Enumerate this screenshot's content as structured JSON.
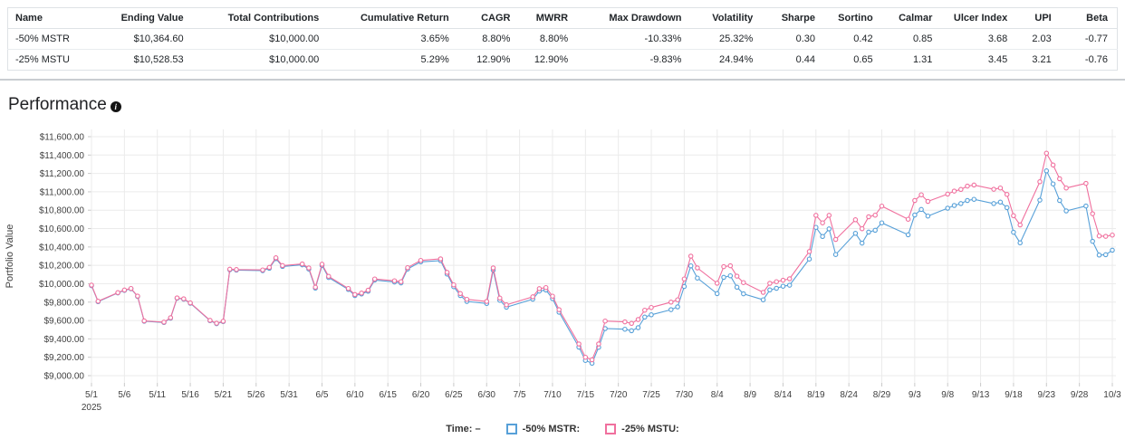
{
  "performance": {
    "title": "Performance",
    "info_icon": "i"
  },
  "table": {
    "columns": [
      "Name",
      "Ending Value",
      "Total Contributions",
      "Cumulative Return",
      "CAGR",
      "MWRR",
      "Max Drawdown",
      "Volatility",
      "Sharpe",
      "Sortino",
      "Calmar",
      "Ulcer Index",
      "UPI",
      "Beta"
    ],
    "rows": [
      [
        "-50% MSTR",
        "$10,364.60",
        "$10,000.00",
        "3.65%",
        "8.80%",
        "8.80%",
        "-10.33%",
        "25.32%",
        "0.30",
        "0.42",
        "0.85",
        "3.68",
        "2.03",
        "-0.77"
      ],
      [
        "-25% MSTU",
        "$10,528.53",
        "$10,000.00",
        "5.29%",
        "12.90%",
        "12.90%",
        "-9.83%",
        "24.94%",
        "0.44",
        "0.65",
        "1.31",
        "3.45",
        "3.21",
        "-0.76"
      ]
    ]
  },
  "legend": {
    "time_label": "Time:",
    "time_value": "–",
    "items": [
      {
        "label": "-50% MSTR:",
        "color": "#57A0D8"
      },
      {
        "label": "-25% MSTU:",
        "color": "#F0709E"
      }
    ]
  },
  "chart_data": {
    "type": "line",
    "title": "Performance",
    "xlabel": "",
    "ylabel": "Portfolio Value",
    "ylim": [
      9000,
      11600
    ],
    "ytick_step": 200,
    "y_tick_labels": [
      "$9,000.00",
      "$9,200.00",
      "$9,400.00",
      "$9,600.00",
      "$9,800.00",
      "$10,000.00",
      "$10,200.00",
      "$10,400.00",
      "$10,600.00",
      "$10,800.00",
      "$11,000.00",
      "$11,200.00",
      "$11,400.00",
      "$11,600.00"
    ],
    "x_tick_labels": [
      "5/1",
      "5/6",
      "5/11",
      "5/16",
      "5/21",
      "5/26",
      "5/31",
      "6/5",
      "6/10",
      "6/15",
      "6/20",
      "6/25",
      "6/30",
      "7/5",
      "7/10",
      "7/15",
      "7/20",
      "7/25",
      "7/30",
      "8/4",
      "8/9",
      "8/14",
      "8/19",
      "8/24",
      "8/29",
      "9/3",
      "9/8",
      "9/13",
      "9/18",
      "9/23",
      "9/28",
      "10/3"
    ],
    "x_first_tick_sublabel": "2025",
    "grid": true,
    "legend_position": "bottom",
    "series": [
      {
        "name": "-50% MSTR",
        "color": "#57A0D8"
      },
      {
        "name": "-25% MSTU",
        "color": "#F0709E"
      }
    ],
    "points": [
      [
        "5/1",
        0,
        9980,
        9985
      ],
      [
        "5/2",
        1,
        9805,
        9810
      ],
      [
        "5/5",
        4,
        9900,
        9903
      ],
      [
        "5/6",
        5,
        9928,
        9932
      ],
      [
        "5/7",
        6,
        9945,
        9948
      ],
      [
        "5/8",
        7,
        9862,
        9866
      ],
      [
        "5/9",
        8,
        9592,
        9596
      ],
      [
        "5/12",
        11,
        9578,
        9582
      ],
      [
        "5/13",
        12,
        9625,
        9630
      ],
      [
        "5/14",
        13,
        9842,
        9846
      ],
      [
        "5/15",
        14,
        9832,
        9836
      ],
      [
        "5/16",
        15,
        9788,
        9792
      ],
      [
        "5/19",
        18,
        9598,
        9602
      ],
      [
        "5/20",
        19,
        9565,
        9570
      ],
      [
        "5/21",
        20,
        9588,
        9592
      ],
      [
        "5/22",
        21,
        10152,
        10158
      ],
      [
        "5/23",
        22,
        10148,
        10154
      ],
      [
        "5/27",
        26,
        10142,
        10150
      ],
      [
        "5/28",
        27,
        10168,
        10178
      ],
      [
        "5/29",
        28,
        10272,
        10282
      ],
      [
        "5/30",
        29,
        10188,
        10198
      ],
      [
        "6/2",
        32,
        10205,
        10215
      ],
      [
        "6/3",
        33,
        10160,
        10172
      ],
      [
        "6/4",
        34,
        9952,
        9962
      ],
      [
        "6/5",
        35,
        10200,
        10212
      ],
      [
        "6/6",
        36,
        10068,
        10080
      ],
      [
        "6/9",
        39,
        9938,
        9948
      ],
      [
        "6/10",
        40,
        9872,
        9882
      ],
      [
        "6/11",
        41,
        9888,
        9898
      ],
      [
        "6/12",
        42,
        9918,
        9930
      ],
      [
        "6/13",
        43,
        10040,
        10052
      ],
      [
        "6/16",
        46,
        10018,
        10032
      ],
      [
        "6/17",
        47,
        10008,
        10022
      ],
      [
        "6/18",
        48,
        10160,
        10175
      ],
      [
        "6/20",
        50,
        10238,
        10254
      ],
      [
        "6/23",
        53,
        10252,
        10270
      ],
      [
        "6/24",
        54,
        10105,
        10124
      ],
      [
        "6/25",
        55,
        9968,
        9988
      ],
      [
        "6/26",
        56,
        9872,
        9893
      ],
      [
        "6/27",
        57,
        9808,
        9830
      ],
      [
        "6/30",
        60,
        9785,
        9808
      ],
      [
        "7/1",
        61,
        10148,
        10172
      ],
      [
        "7/2",
        62,
        9820,
        9844
      ],
      [
        "7/3",
        63,
        9745,
        9770
      ],
      [
        "7/7",
        67,
        9832,
        9858
      ],
      [
        "7/8",
        68,
        9920,
        9946
      ],
      [
        "7/9",
        69,
        9932,
        9958
      ],
      [
        "7/10",
        70,
        9838,
        9865
      ],
      [
        "7/11",
        71,
        9690,
        9718
      ],
      [
        "7/14",
        74,
        9310,
        9345
      ],
      [
        "7/15",
        75,
        9165,
        9200
      ],
      [
        "7/16",
        76,
        9135,
        9172
      ],
      [
        "7/17",
        77,
        9308,
        9345
      ],
      [
        "7/18",
        78,
        9512,
        9594
      ],
      [
        "7/21",
        81,
        9505,
        9585
      ],
      [
        "7/22",
        82,
        9488,
        9568
      ],
      [
        "7/23",
        83,
        9522,
        9611
      ],
      [
        "7/24",
        84,
        9637,
        9712
      ],
      [
        "7/25",
        85,
        9662,
        9742
      ],
      [
        "7/28",
        88,
        9718,
        9800
      ],
      [
        "7/29",
        89,
        9748,
        9825
      ],
      [
        "7/30",
        90,
        9970,
        10052
      ],
      [
        "7/31",
        91,
        10195,
        10300
      ],
      [
        "8/1",
        92,
        10062,
        10172
      ],
      [
        "8/4",
        95,
        9892,
        10006
      ],
      [
        "8/5",
        96,
        10070,
        10186
      ],
      [
        "8/6",
        97,
        10086,
        10196
      ],
      [
        "8/7",
        98,
        9962,
        10082
      ],
      [
        "8/8",
        99,
        9890,
        10012
      ],
      [
        "8/11",
        102,
        9825,
        9906
      ],
      [
        "8/12",
        103,
        9933,
        10005
      ],
      [
        "8/13",
        104,
        9950,
        10022
      ],
      [
        "8/14",
        105,
        9973,
        10038
      ],
      [
        "8/15",
        106,
        9984,
        10054
      ],
      [
        "8/18",
        109,
        10268,
        10350
      ],
      [
        "8/19",
        110,
        10613,
        10744
      ],
      [
        "8/20",
        111,
        10514,
        10662
      ],
      [
        "8/21",
        112,
        10596,
        10744
      ],
      [
        "8/22",
        113,
        10318,
        10482
      ],
      [
        "8/25",
        116,
        10548,
        10696
      ],
      [
        "8/26",
        117,
        10442,
        10598
      ],
      [
        "8/27",
        118,
        10562,
        10728
      ],
      [
        "8/28",
        119,
        10582,
        10746
      ],
      [
        "8/29",
        120,
        10662,
        10845
      ],
      [
        "9/2",
        124,
        10532,
        10702
      ],
      [
        "9/3",
        125,
        10748,
        10906
      ],
      [
        "9/4",
        126,
        10808,
        10968
      ],
      [
        "9/5",
        127,
        10736,
        10896
      ],
      [
        "9/8",
        130,
        10822,
        10976
      ],
      [
        "9/9",
        131,
        10852,
        11008
      ],
      [
        "9/10",
        132,
        10872,
        11026
      ],
      [
        "9/11",
        133,
        10906,
        11062
      ],
      [
        "9/12",
        134,
        10918,
        11074
      ],
      [
        "9/15",
        137,
        10872,
        11028
      ],
      [
        "9/16",
        138,
        10888,
        11042
      ],
      [
        "9/17",
        139,
        10828,
        10972
      ],
      [
        "9/18",
        140,
        10560,
        10740
      ],
      [
        "9/19",
        141,
        10445,
        10640
      ],
      [
        "9/22",
        144,
        10910,
        11110
      ],
      [
        "9/23",
        145,
        11228,
        11420
      ],
      [
        "9/24",
        146,
        11086,
        11292
      ],
      [
        "9/25",
        147,
        10906,
        11142
      ],
      [
        "9/26",
        148,
        10792,
        11042
      ],
      [
        "9/29",
        151,
        10846,
        11092
      ],
      [
        "9/30",
        152,
        10462,
        10762
      ],
      [
        "10/1",
        153,
        10312,
        10520
      ],
      [
        "10/2",
        154,
        10316,
        10516
      ],
      [
        "10/3",
        155,
        10365,
        10529
      ]
    ]
  }
}
